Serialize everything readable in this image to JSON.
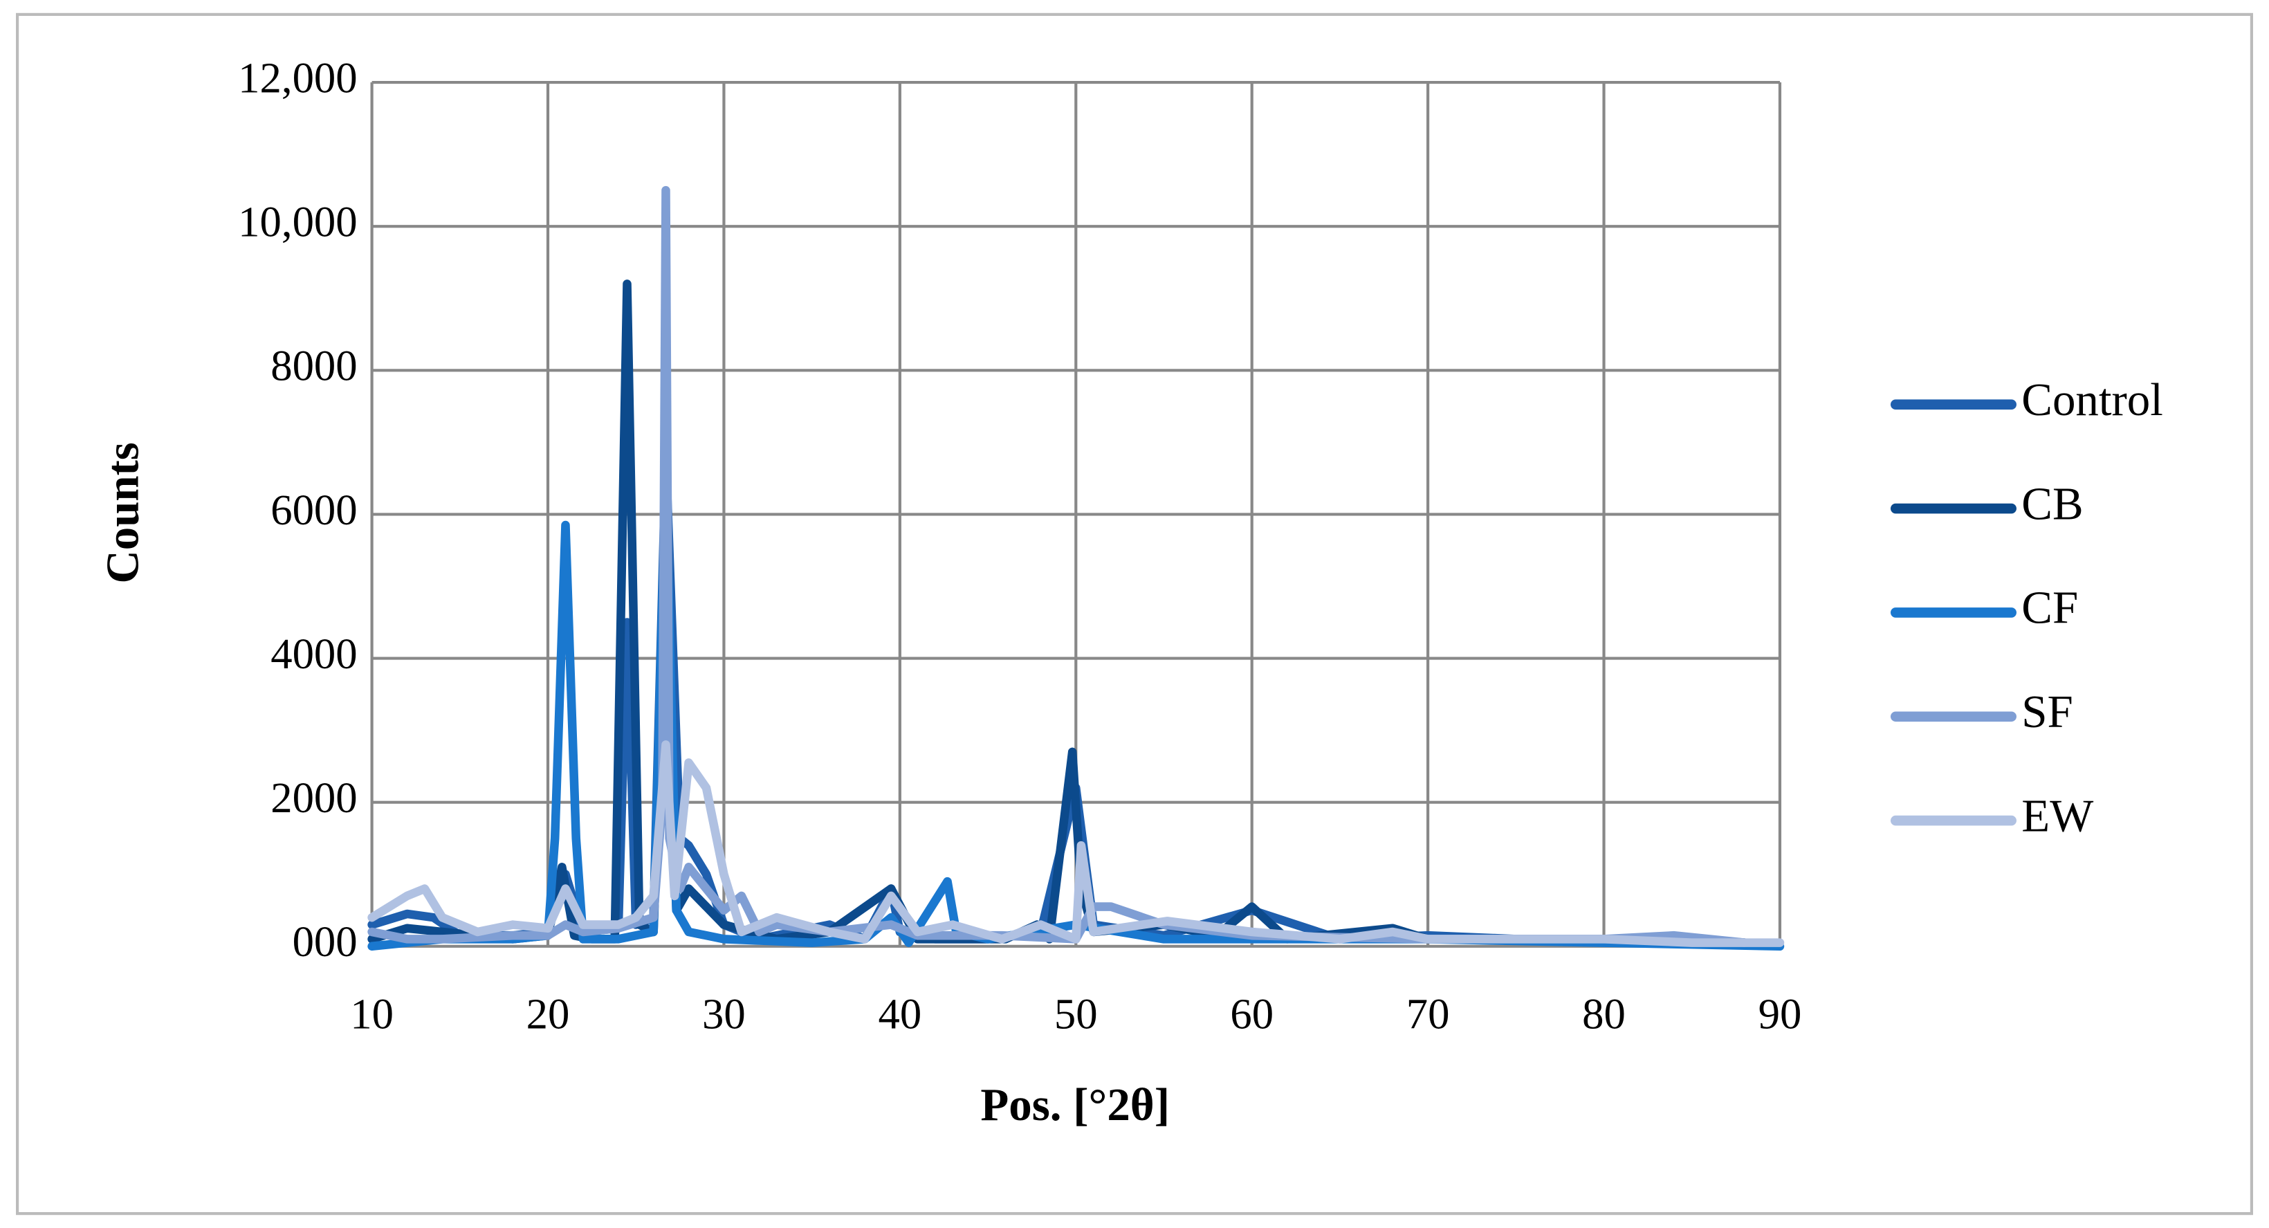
{
  "chart_data": {
    "type": "line",
    "xlabel": "Pos. [°2θ]",
    "ylabel": "Counts",
    "xlim": [
      10,
      90
    ],
    "xticks": [
      10,
      20,
      30,
      40,
      50,
      60,
      70,
      80,
      90
    ],
    "ylim": [
      0,
      12000
    ],
    "yticks": [
      {
        "value": 0,
        "label": "000"
      },
      2000,
      4000,
      6000,
      8000,
      {
        "value": 10000,
        "label": "10,000"
      },
      {
        "value": 12000,
        "label": "12,000"
      }
    ],
    "grid": true,
    "legend": "right",
    "series": [
      {
        "name": "Control",
        "color": "#1f5fae",
        "x": [
          10,
          12,
          13.5,
          15,
          18,
          20,
          21,
          22,
          24,
          24.5,
          25,
          26,
          26.7,
          27.5,
          28,
          29,
          30,
          32,
          36,
          38,
          39.5,
          40,
          42,
          45,
          48,
          50,
          51,
          55,
          60,
          65,
          70,
          75,
          80,
          85,
          88
        ],
        "values": [
          300,
          450,
          400,
          150,
          150,
          200,
          1000,
          200,
          250,
          4500,
          300,
          400,
          6800,
          1500,
          1400,
          1000,
          300,
          100,
          300,
          100,
          800,
          200,
          100,
          100,
          200,
          2200,
          300,
          150,
          500,
          100,
          150,
          100,
          100,
          100,
          50
        ]
      },
      {
        "name": "CB",
        "color": "#0c4a8c",
        "x": [
          10,
          12,
          14,
          18,
          20,
          20.8,
          21.5,
          22.5,
          23.8,
          24.5,
          25.2,
          26,
          26.7,
          27.3,
          28,
          30,
          33,
          36,
          39.5,
          41,
          46,
          47.8,
          48.5,
          49.8,
          50.3,
          51,
          55,
          58,
          60,
          62,
          68,
          70,
          75,
          80,
          88
        ],
        "values": [
          100,
          250,
          200,
          100,
          150,
          1100,
          150,
          100,
          100,
          9200,
          300,
          200,
          4700,
          500,
          800,
          300,
          100,
          200,
          800,
          100,
          100,
          300,
          100,
          2700,
          800,
          200,
          300,
          150,
          550,
          100,
          250,
          100,
          100,
          100,
          50
        ]
      },
      {
        "name": "CF",
        "color": "#1a78cf",
        "x": [
          10,
          14,
          18,
          20,
          20.4,
          21,
          21.6,
          22,
          24,
          26,
          26.7,
          27.3,
          28,
          30,
          35,
          38,
          39.5,
          40.5,
          42.7,
          43.2,
          45,
          50,
          55,
          60,
          70,
          80,
          90
        ],
        "values": [
          0,
          100,
          100,
          150,
          1500,
          5850,
          1500,
          100,
          100,
          200,
          6500,
          500,
          200,
          100,
          50,
          100,
          400,
          50,
          900,
          200,
          100,
          300,
          100,
          100,
          100,
          50,
          0
        ]
      },
      {
        "name": "SF",
        "color": "#7f9ed4",
        "x": [
          10,
          12,
          14,
          18,
          20,
          21,
          22,
          24,
          26,
          26.5,
          26.7,
          26.9,
          27.5,
          28,
          29,
          30,
          31,
          32,
          33,
          36,
          39.5,
          41,
          45.8,
          50,
          51,
          52,
          55,
          60,
          70,
          80,
          84,
          88
        ],
        "values": [
          200,
          100,
          100,
          150,
          150,
          300,
          200,
          250,
          400,
          2000,
          10500,
          1500,
          800,
          1100,
          800,
          500,
          700,
          200,
          300,
          200,
          300,
          150,
          150,
          100,
          550,
          550,
          300,
          150,
          100,
          100,
          150,
          50
        ]
      },
      {
        "name": "EW",
        "color": "#b0c1e2",
        "x": [
          10,
          12,
          13,
          14,
          16,
          18,
          20,
          21,
          22,
          24,
          25,
          26,
          26.7,
          27.2,
          28,
          29,
          30,
          31,
          33,
          36,
          38,
          39.5,
          41,
          43,
          45.8,
          48,
          50,
          50.3,
          51,
          55.2,
          60,
          65,
          68,
          70,
          75,
          80,
          85,
          90
        ],
        "values": [
          400,
          700,
          800,
          400,
          200,
          300,
          250,
          800,
          300,
          300,
          400,
          700,
          2800,
          700,
          2550,
          2200,
          1000,
          200,
          400,
          200,
          100,
          700,
          200,
          300,
          100,
          300,
          100,
          1400,
          200,
          350,
          200,
          100,
          200,
          100,
          100,
          100,
          50,
          50
        ]
      }
    ]
  }
}
